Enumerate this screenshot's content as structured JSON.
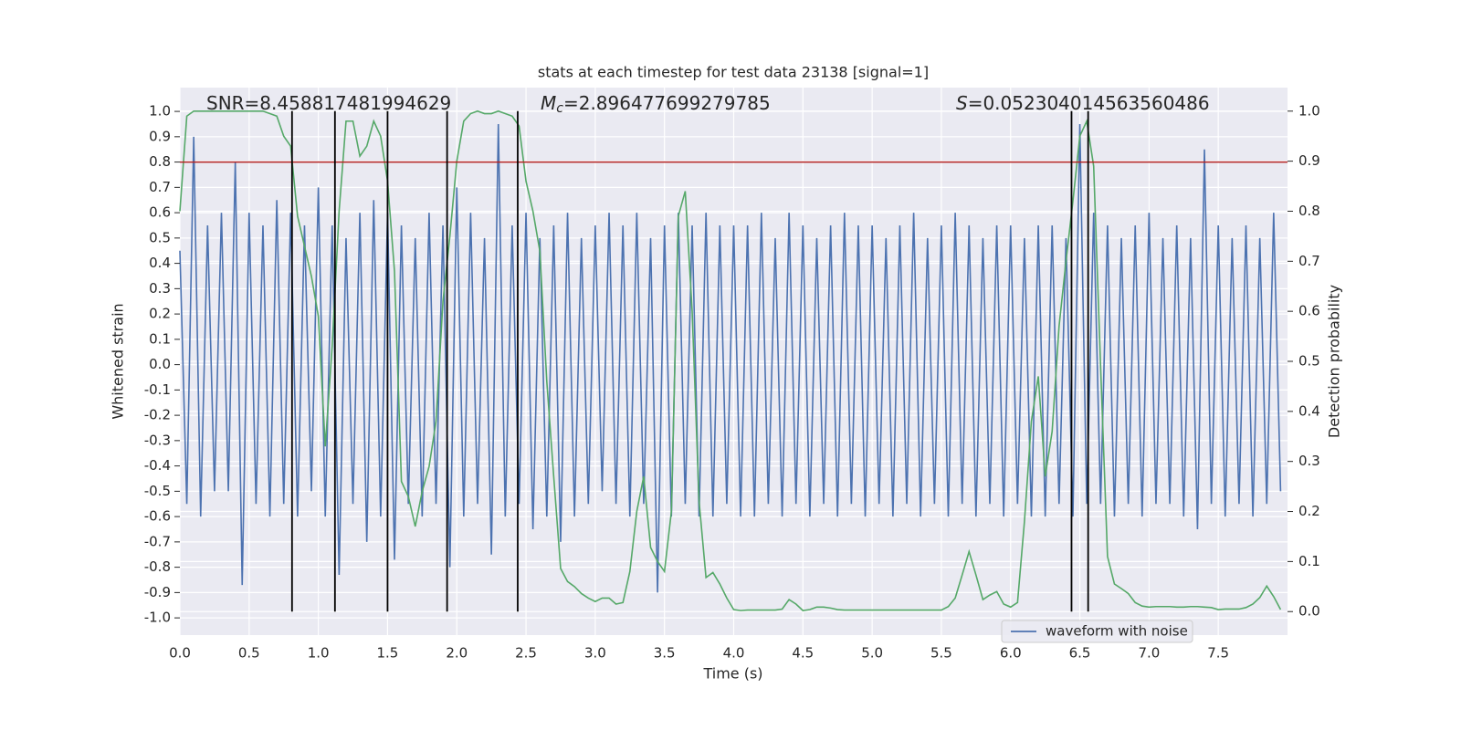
{
  "chart_data": {
    "type": "line",
    "title": "stats at each timestep for test data 23138 [signal=1]",
    "x_label": "Time (s)",
    "y_label": "Whitened strain",
    "y2_label": "Detection probability",
    "annotations": [
      {
        "text": "SNR=8.458817481994629"
      },
      {
        "symbol": "M",
        "sub": "c",
        "text": "=2.896477699279785"
      },
      {
        "symbol": "S",
        "text": "=0.052304014563560486"
      }
    ],
    "xlim": [
      0,
      8
    ],
    "ylim": [
      -1.068,
      1.094
    ],
    "y2lim": [
      -0.047,
      1.047
    ],
    "xticks": [
      {
        "value": 0,
        "label": "0.0"
      },
      0.5,
      {
        "value": 1,
        "label": "1.0"
      },
      1.5,
      {
        "value": 2,
        "label": "2.0"
      },
      2.5,
      {
        "value": 3,
        "label": "3.0"
      },
      3.5,
      {
        "value": 4,
        "label": "4.0"
      },
      4.5,
      {
        "value": 5,
        "label": "5.0"
      },
      5.5,
      {
        "value": 6,
        "label": "6.0"
      },
      6.5,
      {
        "value": 7,
        "label": "7.0"
      },
      7.5
    ],
    "yticks": [
      {
        "value": -1,
        "label": "-1.0"
      },
      -0.9,
      -0.8,
      -0.7,
      -0.6,
      -0.5,
      -0.4,
      -0.3,
      -0.2,
      -0.1,
      {
        "value": 0,
        "label": "0.0"
      },
      0.1,
      0.2,
      0.3,
      0.4,
      0.5,
      0.6,
      0.7,
      0.8,
      0.9,
      {
        "value": 1,
        "label": "1.0"
      }
    ],
    "y2ticks": [
      {
        "value": 0,
        "label": "0.0"
      },
      0.1,
      0.2,
      0.3,
      0.4,
      0.5,
      0.6,
      0.7,
      0.8,
      0.9,
      {
        "value": 1,
        "label": "1.0"
      }
    ],
    "grid": true,
    "legend": "lower right",
    "x": [
      0,
      0.05,
      0.1,
      0.15,
      0.2,
      0.25,
      0.3,
      0.35,
      0.4,
      0.45,
      0.5,
      0.55,
      0.6,
      0.65,
      0.7,
      0.75,
      0.8,
      0.85,
      0.9,
      0.95,
      1,
      1.05,
      1.1,
      1.15,
      1.2,
      1.25,
      1.3,
      1.35,
      1.4,
      1.45,
      1.5,
      1.55,
      1.6,
      1.65,
      1.7,
      1.75,
      1.8,
      1.85,
      1.9,
      1.95,
      2,
      2.05,
      2.1,
      2.15,
      2.2,
      2.25,
      2.3,
      2.35,
      2.4,
      2.45,
      2.5,
      2.55,
      2.6,
      2.65,
      2.7,
      2.75,
      2.8,
      2.85,
      2.9,
      2.95,
      3,
      3.05,
      3.1,
      3.15,
      3.2,
      3.25,
      3.3,
      3.35,
      3.4,
      3.45,
      3.5,
      3.55,
      3.6,
      3.65,
      3.7,
      3.75,
      3.8,
      3.85,
      3.9,
      3.95,
      4,
      4.05,
      4.1,
      4.15,
      4.2,
      4.25,
      4.3,
      4.35,
      4.4,
      4.45,
      4.5,
      4.55,
      4.6,
      4.65,
      4.7,
      4.75,
      4.8,
      4.85,
      4.9,
      4.95,
      5,
      5.05,
      5.1,
      5.15,
      5.2,
      5.25,
      5.3,
      5.35,
      5.4,
      5.45,
      5.5,
      5.55,
      5.6,
      5.65,
      5.7,
      5.75,
      5.8,
      5.85,
      5.9,
      5.95,
      6,
      6.05,
      6.1,
      6.15,
      6.2,
      6.25,
      6.3,
      6.35,
      6.4,
      6.45,
      6.5,
      6.55,
      6.6,
      6.65,
      6.7,
      6.75,
      6.8,
      6.85,
      6.9,
      6.95,
      7,
      7.05,
      7.1,
      7.15,
      7.2,
      7.25,
      7.3,
      7.35,
      7.4,
      7.45,
      7.5,
      7.55,
      7.6,
      7.65,
      7.7,
      7.75,
      7.8,
      7.85,
      7.9,
      7.95
    ],
    "series": [
      {
        "name": "waveform with noise",
        "color": "#4c72b0",
        "axis": "y",
        "values": [
          0.45,
          -0.55,
          0.9,
          -0.6,
          0.55,
          -0.5,
          0.6,
          -0.5,
          0.8,
          -0.87,
          0.6,
          -0.55,
          0.55,
          -0.6,
          0.65,
          -0.55,
          0.6,
          -0.6,
          0.55,
          -0.5,
          0.7,
          -0.6,
          0.55,
          -0.83,
          0.5,
          -0.55,
          0.6,
          -0.7,
          0.65,
          -0.6,
          0.6,
          -0.77,
          0.55,
          -0.55,
          0.5,
          -0.6,
          0.6,
          -0.55,
          0.55,
          -0.8,
          0.7,
          -0.6,
          0.6,
          -0.55,
          0.5,
          -0.75,
          0.95,
          -0.6,
          0.55,
          -0.55,
          0.6,
          -0.65,
          0.5,
          -0.6,
          0.55,
          -0.7,
          0.6,
          -0.6,
          0.5,
          -0.55,
          0.55,
          -0.5,
          0.6,
          -0.55,
          0.55,
          -0.6,
          0.6,
          -0.55,
          0.5,
          -0.9,
          0.55,
          -0.6,
          0.6,
          -0.55,
          0.55,
          -0.6,
          0.6,
          -0.6,
          0.55,
          -0.55,
          0.55,
          -0.6,
          0.55,
          -0.6,
          0.6,
          -0.55,
          0.5,
          -0.6,
          0.6,
          -0.55,
          0.55,
          -0.6,
          0.5,
          -0.55,
          0.55,
          -0.6,
          0.6,
          -0.55,
          0.55,
          -0.6,
          0.55,
          -0.55,
          0.5,
          -0.6,
          0.55,
          -0.55,
          0.6,
          -0.6,
          0.5,
          -0.55,
          0.55,
          -0.6,
          0.6,
          -0.55,
          0.55,
          -0.6,
          0.5,
          -0.55,
          0.55,
          -0.6,
          0.55,
          -0.55,
          0.5,
          -0.6,
          0.55,
          -0.6,
          0.55,
          -0.55,
          0.5,
          -0.6,
          0.95,
          -0.55,
          0.6,
          -0.55,
          0.55,
          -0.6,
          0.5,
          -0.55,
          0.55,
          -0.6,
          0.6,
          -0.55,
          0.5,
          -0.55,
          0.55,
          -0.6,
          0.5,
          -0.65,
          0.85,
          -0.55,
          0.55,
          -0.6,
          0.5,
          -0.55,
          0.55,
          -0.6,
          0.5,
          -0.55,
          0.6,
          -0.5
        ]
      },
      {
        "color": "#55a868",
        "axis": "y2",
        "values": [
          0.8,
          0.99,
          1,
          1,
          1,
          1,
          1,
          1,
          1,
          1,
          1,
          1,
          1,
          0.995,
          0.99,
          0.95,
          0.93,
          0.79,
          0.73,
          0.67,
          0.59,
          0.33,
          0.53,
          0.8,
          0.98,
          0.98,
          0.91,
          0.93,
          0.98,
          0.95,
          0.86,
          0.68,
          0.26,
          0.23,
          0.17,
          0.24,
          0.29,
          0.38,
          0.62,
          0.75,
          0.9,
          0.98,
          0.995,
          1,
          0.995,
          0.995,
          1,
          0.995,
          0.99,
          0.97,
          0.86,
          0.8,
          0.72,
          0.46,
          0.27,
          0.086,
          0.06,
          0.05,
          0.036,
          0.027,
          0.02,
          0.027,
          0.027,
          0.015,
          0.018,
          0.08,
          0.2,
          0.27,
          0.128,
          0.1,
          0.08,
          0.2,
          0.79,
          0.84,
          0.6,
          0.22,
          0.068,
          0.078,
          0.055,
          0.027,
          0.004,
          0.002,
          0.003,
          0.003,
          0.003,
          0.003,
          0.003,
          0.005,
          0.024,
          0.015,
          0.002,
          0.004,
          0.009,
          0.009,
          0.007,
          0.004,
          0.003,
          0.003,
          0.003,
          0.003,
          0.003,
          0.003,
          0.003,
          0.003,
          0.003,
          0.003,
          0.003,
          0.003,
          0.003,
          0.003,
          0.003,
          0.01,
          0.027,
          0.073,
          0.12,
          0.073,
          0.024,
          0.033,
          0.04,
          0.015,
          0.009,
          0.018,
          0.18,
          0.38,
          0.47,
          0.27,
          0.36,
          0.57,
          0.7,
          0.82,
          0.95,
          0.98,
          0.89,
          0.49,
          0.11,
          0.055,
          0.046,
          0.036,
          0.018,
          0.011,
          0.009,
          0.01,
          0.01,
          0.01,
          0.009,
          0.009,
          0.01,
          0.01,
          0.009,
          0.008,
          0.004,
          0.005,
          0.005,
          0.005,
          0.008,
          0.015,
          0.028,
          0.051,
          0.03,
          0.004
        ]
      }
    ],
    "threshold": {
      "value": 0.8,
      "color": "#b22222"
    },
    "vlines": {
      "x": [
        0.81,
        1.12,
        1.5,
        1.93,
        2.44,
        6.44,
        6.56
      ],
      "ymin": 0,
      "ymax": 1,
      "axis": "y2",
      "color": "#000000"
    }
  }
}
